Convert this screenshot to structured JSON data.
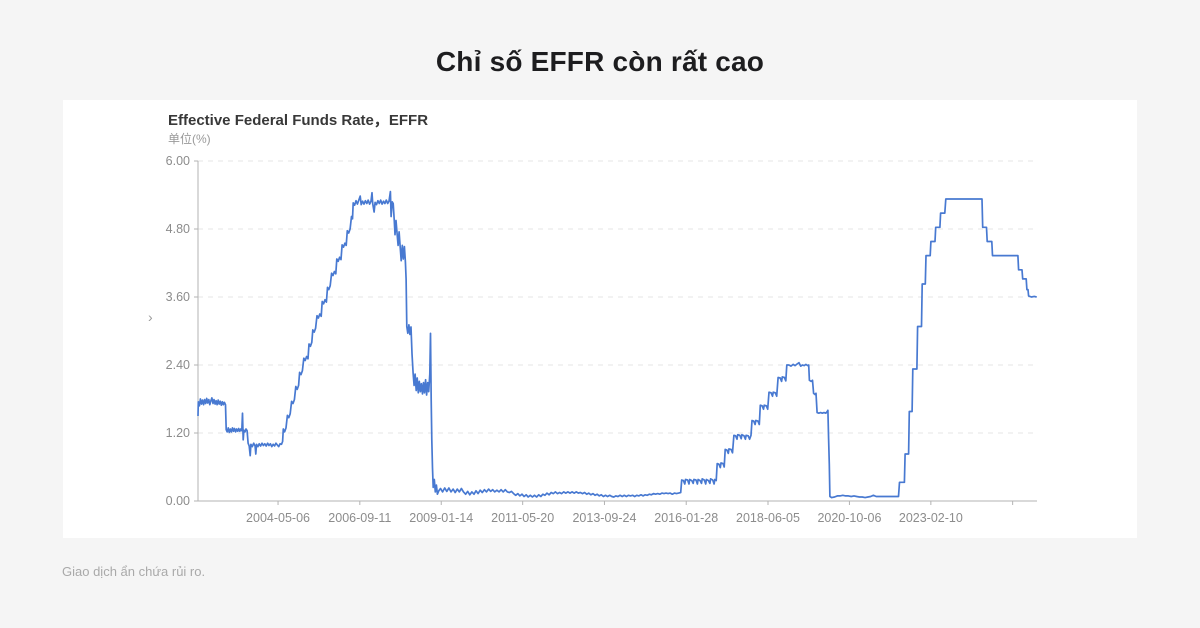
{
  "page": {
    "title": "Chỉ số EFFR còn rất cao",
    "disclaimer": "Giao dịch ẩn chứa rủi ro."
  },
  "chart": {
    "title": "Effective Federal Funds Rate，EFFR",
    "unit": "单位(%)",
    "chevron_icon": "›"
  },
  "colors": {
    "line": "#4879d1",
    "grid": "#e6e6e6",
    "axis": "#b3b3b3",
    "tick_label": "#8c8c8c",
    "background": "#f5f5f5",
    "card": "#ffffff"
  },
  "chart_data": {
    "type": "line",
    "title": "Effective Federal Funds Rate，EFFR",
    "ylabel": "单位(%)",
    "series_name": "EFFR",
    "ylim": [
      0,
      6
    ],
    "xlim": [
      2002.05,
      2026.16
    ],
    "grid": "dashed-horizontal",
    "legend_position": "none",
    "y_ticks": [
      {
        "v": 0.0,
        "label": "0.00"
      },
      {
        "v": 1.2,
        "label": "1.20"
      },
      {
        "v": 2.4,
        "label": "2.40"
      },
      {
        "v": 3.6,
        "label": "3.60"
      },
      {
        "v": 4.8,
        "label": "4.80"
      },
      {
        "v": 6.0,
        "label": "6.00"
      }
    ],
    "x_ticks": [
      {
        "t": 2004.35,
        "label": "2004-05-06"
      },
      {
        "t": 2006.7,
        "label": "2006-09-11"
      },
      {
        "t": 2009.04,
        "label": "2009-01-14"
      },
      {
        "t": 2011.38,
        "label": "2011-05-20"
      },
      {
        "t": 2013.73,
        "label": "2013-09-24"
      },
      {
        "t": 2016.08,
        "label": "2016-01-28"
      },
      {
        "t": 2018.43,
        "label": "2018-06-05"
      },
      {
        "t": 2020.77,
        "label": "2020-10-06"
      },
      {
        "t": 2023.11,
        "label": "2023-02-10"
      },
      {
        "t": 2025.46,
        "label": ""
      }
    ],
    "points_flat": [
      2002.05,
      1.5,
      2002.06,
      1.75,
      2002.09,
      1.68,
      2002.12,
      1.8,
      2002.15,
      1.71,
      2002.18,
      1.78,
      2002.21,
      1.7,
      2002.24,
      1.79,
      2002.27,
      1.72,
      2002.3,
      1.81,
      2002.33,
      1.73,
      2002.36,
      1.79,
      2002.39,
      1.7,
      2002.42,
      1.77,
      2002.45,
      1.82,
      2002.48,
      1.72,
      2002.51,
      1.79,
      2002.54,
      1.71,
      2002.57,
      1.77,
      2002.6,
      1.7,
      2002.63,
      1.78,
      2002.66,
      1.71,
      2002.69,
      1.76,
      2002.72,
      1.69,
      2002.75,
      1.75,
      2002.78,
      1.7,
      2002.81,
      1.74,
      2002.84,
      1.7,
      2002.86,
      1.26,
      2002.89,
      1.22,
      2002.92,
      1.29,
      2002.95,
      1.21,
      2002.98,
      1.27,
      2003.01,
      1.22,
      2003.04,
      1.29,
      2003.07,
      1.23,
      2003.1,
      1.28,
      2003.13,
      1.22,
      2003.16,
      1.27,
      2003.19,
      1.23,
      2003.22,
      1.28,
      2003.25,
      1.23,
      2003.28,
      1.27,
      2003.31,
      1.24,
      2003.33,
      1.55,
      2003.35,
      1.08,
      2003.37,
      1.25,
      2003.4,
      1.22,
      2003.43,
      1.27,
      2003.46,
      1.24,
      2003.49,
      1.02,
      2003.52,
      0.97,
      2003.55,
      0.8,
      2003.57,
      1.0,
      2003.61,
      0.96,
      2003.65,
      1.02,
      2003.69,
      0.97,
      2003.71,
      0.83,
      2003.73,
      1.0,
      2003.77,
      0.96,
      2003.81,
      1.01,
      2003.85,
      0.97,
      2003.89,
      1.02,
      2003.93,
      0.98,
      2003.97,
      1.01,
      2004.01,
      0.97,
      2004.05,
      1.02,
      2004.09,
      0.98,
      2004.13,
      1.01,
      2004.17,
      0.96,
      2004.21,
      1.0,
      2004.25,
      0.97,
      2004.29,
      1.02,
      2004.33,
      0.99,
      2004.37,
      0.96,
      2004.41,
      1.01,
      2004.45,
      1.0,
      2004.48,
      1.05,
      2004.5,
      1.27,
      2004.54,
      1.22,
      2004.58,
      1.29,
      2004.62,
      1.51,
      2004.66,
      1.47,
      2004.7,
      1.54,
      2004.74,
      1.76,
      2004.78,
      1.72,
      2004.82,
      1.79,
      2004.86,
      2.02,
      2004.9,
      1.97,
      2004.94,
      2.04,
      2004.97,
      2.27,
      2005.01,
      2.23,
      2005.05,
      2.3,
      2005.09,
      2.52,
      2005.13,
      2.48,
      2005.17,
      2.55,
      2005.21,
      2.51,
      2005.24,
      2.77,
      2005.28,
      2.73,
      2005.32,
      2.8,
      2005.35,
      3.02,
      2005.39,
      2.98,
      2005.43,
      3.05,
      2005.47,
      3.27,
      2005.51,
      3.23,
      2005.55,
      3.3,
      2005.59,
      3.26,
      2005.62,
      3.52,
      2005.66,
      3.48,
      2005.7,
      3.55,
      2005.74,
      3.51,
      2005.77,
      3.77,
      2005.81,
      3.73,
      2005.85,
      3.8,
      2005.89,
      4.02,
      2005.93,
      3.98,
      2005.97,
      4.05,
      2006.01,
      4.01,
      2006.04,
      4.27,
      2006.08,
      4.23,
      2006.12,
      4.3,
      2006.16,
      4.26,
      2006.19,
      4.52,
      2006.23,
      4.48,
      2006.27,
      4.55,
      2006.31,
      4.51,
      2006.34,
      4.77,
      2006.38,
      4.73,
      2006.42,
      4.8,
      2006.46,
      5.02,
      2006.49,
      4.98,
      2006.51,
      5.26,
      2006.55,
      5.22,
      2006.59,
      5.3,
      2006.63,
      5.24,
      2006.67,
      5.31,
      2006.71,
      5.38,
      2006.74,
      5.23,
      2006.78,
      5.29,
      2006.82,
      5.24,
      2006.86,
      5.3,
      2006.9,
      5.25,
      2006.94,
      5.31,
      2006.98,
      5.24,
      2007.02,
      5.29,
      2007.05,
      5.44,
      2007.07,
      5.25,
      2007.11,
      5.1,
      2007.14,
      5.27,
      2007.18,
      5.23,
      2007.22,
      5.3,
      2007.26,
      5.25,
      2007.3,
      5.31,
      2007.34,
      5.24,
      2007.38,
      5.29,
      2007.42,
      5.25,
      2007.46,
      5.31,
      2007.5,
      5.25,
      2007.54,
      5.29,
      2007.58,
      5.46,
      2007.6,
      5.02,
      2007.63,
      5.28,
      2007.66,
      5.25,
      2007.69,
      4.94,
      2007.71,
      4.7,
      2007.74,
      4.95,
      2007.77,
      4.74,
      2007.8,
      4.51,
      2007.83,
      4.75,
      2007.86,
      4.48,
      2007.89,
      4.24,
      2007.92,
      4.51,
      2007.95,
      4.27,
      2007.98,
      4.49,
      2008.01,
      4.22,
      2008.03,
      3.92,
      2008.05,
      3.08,
      2008.08,
      2.96,
      2008.11,
      3.11,
      2008.14,
      2.94,
      2008.17,
      3.07,
      2008.2,
      2.6,
      2008.23,
      2.26,
      2008.26,
      2.04,
      2008.29,
      2.24,
      2008.32,
      1.95,
      2008.35,
      2.17,
      2008.38,
      1.91,
      2008.41,
      2.11,
      2008.44,
      1.93,
      2008.47,
      2.07,
      2008.5,
      1.89,
      2008.53,
      2.09,
      2008.56,
      1.91,
      2008.59,
      2.14,
      2008.62,
      1.87,
      2008.65,
      2.09,
      2008.68,
      1.93,
      2008.71,
      2.24,
      2008.73,
      2.96,
      2008.75,
      1.78,
      2008.77,
      1.08,
      2008.79,
      0.58,
      2008.81,
      0.24,
      2008.84,
      0.38,
      2008.87,
      0.16,
      2008.9,
      0.28,
      2008.93,
      0.12,
      2008.97,
      0.18,
      2009.02,
      0.22,
      2009.08,
      0.16,
      2009.14,
      0.23,
      2009.2,
      0.17,
      2009.26,
      0.23,
      2009.32,
      0.16,
      2009.38,
      0.21,
      2009.44,
      0.15,
      2009.5,
      0.21,
      2009.56,
      0.16,
      2009.62,
      0.22,
      2009.68,
      0.16,
      2009.74,
      0.12,
      2009.8,
      0.17,
      2009.86,
      0.11,
      2009.92,
      0.16,
      2009.98,
      0.12,
      2010.04,
      0.18,
      2010.1,
      0.13,
      2010.16,
      0.19,
      2010.22,
      0.15,
      2010.28,
      0.2,
      2010.34,
      0.16,
      2010.4,
      0.21,
      2010.46,
      0.17,
      2010.52,
      0.2,
      2010.58,
      0.16,
      2010.64,
      0.19,
      2010.7,
      0.16,
      2010.76,
      0.2,
      2010.82,
      0.16,
      2010.88,
      0.2,
      2010.94,
      0.16,
      2011.0,
      0.15,
      2011.06,
      0.17,
      2011.12,
      0.13,
      2011.18,
      0.1,
      2011.24,
      0.13,
      2011.3,
      0.09,
      2011.36,
      0.12,
      2011.42,
      0.08,
      2011.48,
      0.11,
      2011.54,
      0.07,
      2011.6,
      0.1,
      2011.66,
      0.07,
      2011.72,
      0.1,
      2011.78,
      0.07,
      2011.84,
      0.11,
      2011.9,
      0.08,
      2011.96,
      0.12,
      2012.02,
      0.1,
      2012.08,
      0.14,
      2012.14,
      0.11,
      2012.2,
      0.15,
      2012.26,
      0.13,
      2012.32,
      0.16,
      2012.38,
      0.13,
      2012.44,
      0.15,
      2012.5,
      0.13,
      2012.56,
      0.16,
      2012.62,
      0.14,
      2012.68,
      0.16,
      2012.74,
      0.14,
      2012.8,
      0.16,
      2012.86,
      0.14,
      2012.92,
      0.16,
      2012.98,
      0.14,
      2013.04,
      0.15,
      2013.1,
      0.13,
      2013.16,
      0.15,
      2013.22,
      0.12,
      2013.28,
      0.14,
      2013.34,
      0.11,
      2013.4,
      0.13,
      2013.46,
      0.1,
      2013.52,
      0.12,
      2013.58,
      0.09,
      2013.64,
      0.11,
      2013.7,
      0.08,
      2013.76,
      0.1,
      2013.82,
      0.08,
      2013.88,
      0.1,
      2013.94,
      0.08,
      2014.0,
      0.07,
      2014.06,
      0.09,
      2014.12,
      0.08,
      2014.18,
      0.1,
      2014.24,
      0.08,
      2014.3,
      0.1,
      2014.36,
      0.08,
      2014.42,
      0.1,
      2014.48,
      0.09,
      2014.54,
      0.1,
      2014.6,
      0.08,
      2014.66,
      0.1,
      2014.72,
      0.09,
      2014.78,
      0.11,
      2014.84,
      0.09,
      2014.9,
      0.11,
      2014.96,
      0.1,
      2015.02,
      0.12,
      2015.08,
      0.11,
      2015.14,
      0.13,
      2015.2,
      0.12,
      2015.26,
      0.13,
      2015.32,
      0.12,
      2015.38,
      0.14,
      2015.44,
      0.13,
      2015.5,
      0.14,
      2015.56,
      0.13,
      2015.62,
      0.14,
      2015.68,
      0.12,
      2015.74,
      0.14,
      2015.8,
      0.13,
      2015.86,
      0.14,
      2015.92,
      0.15,
      2015.95,
      0.37,
      2016.0,
      0.36,
      2016.04,
      0.3,
      2016.06,
      0.38,
      2016.12,
      0.37,
      2016.16,
      0.3,
      2016.18,
      0.38,
      2016.24,
      0.36,
      2016.28,
      0.31,
      2016.3,
      0.38,
      2016.36,
      0.37,
      2016.4,
      0.3,
      2016.42,
      0.38,
      2016.48,
      0.36,
      2016.52,
      0.31,
      2016.54,
      0.39,
      2016.6,
      0.37,
      2016.64,
      0.3,
      2016.66,
      0.38,
      2016.72,
      0.36,
      2016.76,
      0.31,
      2016.78,
      0.39,
      2016.84,
      0.37,
      2016.88,
      0.3,
      2016.9,
      0.38,
      2016.94,
      0.36,
      2016.97,
      0.66,
      2017.02,
      0.65,
      2017.06,
      0.59,
      2017.08,
      0.67,
      2017.14,
      0.66,
      2017.17,
      0.6,
      2017.2,
      0.91,
      2017.25,
      0.9,
      2017.29,
      0.84,
      2017.31,
      0.92,
      2017.37,
      0.91,
      2017.41,
      0.85,
      2017.45,
      1.16,
      2017.5,
      1.15,
      2017.54,
      1.09,
      2017.56,
      1.17,
      2017.62,
      1.16,
      2017.66,
      1.1,
      2017.68,
      1.17,
      2017.74,
      1.15,
      2017.78,
      1.09,
      2017.8,
      1.16,
      2017.86,
      1.15,
      2017.9,
      1.09,
      2017.94,
      1.16,
      2017.97,
      1.42,
      2018.02,
      1.41,
      2018.06,
      1.35,
      2018.08,
      1.42,
      2018.14,
      1.41,
      2018.18,
      1.35,
      2018.21,
      1.69,
      2018.26,
      1.68,
      2018.3,
      1.62,
      2018.32,
      1.69,
      2018.38,
      1.68,
      2018.42,
      1.62,
      2018.46,
      1.92,
      2018.52,
      1.91,
      2018.56,
      1.85,
      2018.58,
      1.92,
      2018.64,
      1.91,
      2018.68,
      1.85,
      2018.72,
      2.18,
      2018.78,
      2.17,
      2018.82,
      2.11,
      2018.84,
      2.19,
      2018.9,
      2.18,
      2018.94,
      2.12,
      2018.97,
      2.4,
      2019.03,
      2.4,
      2019.09,
      2.38,
      2019.15,
      2.41,
      2019.21,
      2.39,
      2019.27,
      2.42,
      2019.32,
      2.44,
      2019.37,
      2.38,
      2019.42,
      2.4,
      2019.47,
      2.39,
      2019.52,
      2.41,
      2019.57,
      2.39,
      2019.6,
      2.4,
      2019.62,
      2.13,
      2019.67,
      2.11,
      2019.71,
      2.13,
      2019.74,
      1.9,
      2019.78,
      1.88,
      2019.81,
      1.9,
      2019.84,
      1.56,
      2019.89,
      1.55,
      2019.94,
      1.56,
      2019.99,
      1.55,
      2020.04,
      1.56,
      2020.09,
      1.55,
      2020.13,
      1.58,
      2020.15,
      1.6,
      2020.17,
      1.1,
      2020.19,
      0.65,
      2020.21,
      0.08,
      2020.26,
      0.06,
      2020.34,
      0.07,
      2020.42,
      0.09,
      2020.5,
      0.09,
      2020.58,
      0.1,
      2020.66,
      0.09,
      2020.74,
      0.09,
      2020.82,
      0.08,
      2020.9,
      0.09,
      2020.98,
      0.08,
      2021.06,
      0.07,
      2021.14,
      0.07,
      2021.22,
      0.06,
      2021.3,
      0.07,
      2021.38,
      0.08,
      2021.46,
      0.1,
      2021.54,
      0.08,
      2021.62,
      0.08,
      2021.7,
      0.08,
      2021.78,
      0.08,
      2021.86,
      0.08,
      2021.94,
      0.08,
      2022.02,
      0.08,
      2022.1,
      0.08,
      2022.18,
      0.08,
      2022.21,
      0.33,
      2022.29,
      0.33,
      2022.35,
      0.33,
      2022.37,
      0.83,
      2022.43,
      0.83,
      2022.47,
      0.83,
      2022.49,
      1.58,
      2022.54,
      1.58,
      2022.57,
      1.58,
      2022.59,
      2.33,
      2022.65,
      2.33,
      2022.71,
      2.33,
      2022.73,
      3.08,
      2022.79,
      3.08,
      2022.84,
      3.08,
      2022.86,
      3.83,
      2022.91,
      3.83,
      2022.95,
      3.83,
      2022.97,
      4.33,
      2023.03,
      4.33,
      2023.09,
      4.33,
      2023.11,
      4.58,
      2023.17,
      4.58,
      2023.23,
      4.58,
      2023.25,
      4.83,
      2023.31,
      4.83,
      2023.37,
      4.83,
      2023.39,
      5.08,
      2023.45,
      5.08,
      2023.51,
      5.08,
      2023.54,
      5.33,
      2023.62,
      5.33,
      2023.72,
      5.33,
      2023.82,
      5.33,
      2023.92,
      5.33,
      2024.02,
      5.33,
      2024.12,
      5.33,
      2024.22,
      5.33,
      2024.32,
      5.33,
      2024.42,
      5.33,
      2024.52,
      5.33,
      2024.58,
      5.33,
      2024.6,
      4.83,
      2024.66,
      4.83,
      2024.71,
      4.83,
      2024.73,
      4.58,
      2024.8,
      4.58,
      2024.86,
      4.58,
      2024.88,
      4.33,
      2024.96,
      4.33,
      2025.06,
      4.33,
      2025.16,
      4.33,
      2025.26,
      4.33,
      2025.36,
      4.33,
      2025.46,
      4.33,
      2025.56,
      4.33,
      2025.61,
      4.33,
      2025.63,
      4.08,
      2025.69,
      4.08,
      2025.73,
      4.08,
      2025.75,
      3.92,
      2025.81,
      3.92,
      2025.85,
      3.92,
      2025.87,
      3.73,
      2025.9,
      3.73,
      2025.92,
      3.62,
      2026.0,
      3.6,
      2026.08,
      3.61,
      2026.15,
      3.6
    ]
  }
}
